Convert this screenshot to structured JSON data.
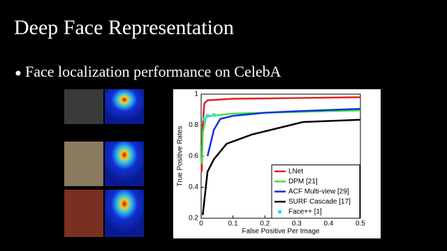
{
  "slide": {
    "title": "Deep Face Representation",
    "bullet": "Face localization performance on CelebA"
  },
  "chart_data": {
    "type": "line",
    "xlabel": "False Positive Per Image",
    "ylabel": "True Positive Rates",
    "xlim": [
      0,
      0.5
    ],
    "ylim": [
      0.2,
      1
    ],
    "xticks": [
      0,
      0.1,
      0.2,
      0.3,
      0.4,
      0.5
    ],
    "yticks": [
      0.2,
      0.4,
      0.6,
      0.8,
      1
    ],
    "legend": "lower right",
    "series": [
      {
        "name": "LNet",
        "color": "#e02020",
        "x": [
          0.002,
          0.005,
          0.01,
          0.02,
          0.1,
          0.3,
          0.5
        ],
        "values": [
          0.5,
          0.8,
          0.94,
          0.96,
          0.97,
          0.975,
          0.98
        ]
      },
      {
        "name": "DPM [21]",
        "color": "#40e040",
        "x": [
          0.002,
          0.005,
          0.015,
          0.03,
          0.1,
          0.3,
          0.5
        ],
        "values": [
          0.55,
          0.75,
          0.85,
          0.86,
          0.875,
          0.885,
          0.895
        ]
      },
      {
        "name": "ACF Multi-view [29]",
        "color": "#1030e0",
        "x": [
          0.02,
          0.04,
          0.06,
          0.1,
          0.2,
          0.3,
          0.5
        ],
        "values": [
          0.6,
          0.77,
          0.84,
          0.86,
          0.88,
          0.89,
          0.905
        ]
      },
      {
        "name": "SURF Cascade [17]",
        "color": "#000000",
        "x": [
          0.005,
          0.02,
          0.04,
          0.08,
          0.16,
          0.32,
          0.5
        ],
        "values": [
          0.22,
          0.5,
          0.58,
          0.68,
          0.74,
          0.82,
          0.835
        ]
      },
      {
        "name": "Face++ [1]",
        "color": "#30e0e0",
        "marker": true,
        "x": [
          0.01,
          0.02,
          0.04
        ],
        "values": [
          0.84,
          0.86,
          0.865
        ]
      }
    ]
  }
}
